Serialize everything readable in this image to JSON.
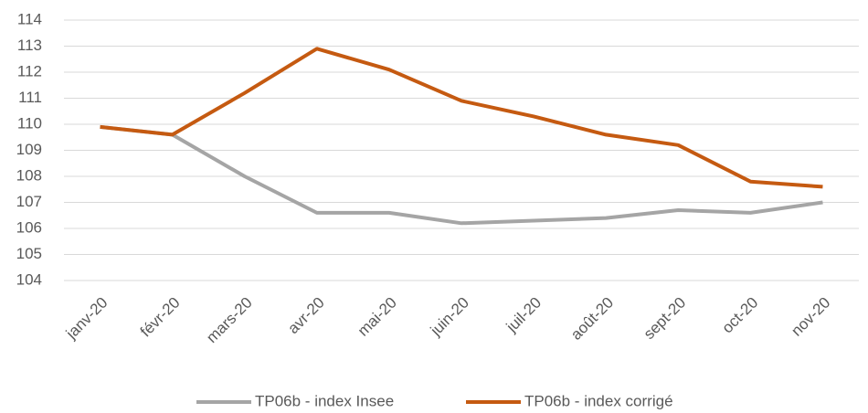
{
  "chart_data": {
    "type": "line",
    "categories": [
      "janv-20",
      "févr-20",
      "mars-20",
      "avr-20",
      "mai-20",
      "juin-20",
      "juil-20",
      "août-20",
      "sept-20",
      "oct-20",
      "nov-20"
    ],
    "series": [
      {
        "name": "TP06b - index Insee",
        "color": "#a5a5a5",
        "values": [
          109.9,
          109.6,
          108.0,
          106.6,
          106.6,
          106.2,
          106.3,
          106.4,
          106.7,
          106.6,
          107.0
        ]
      },
      {
        "name": "TP06b - index corrigé",
        "color": "#c55a11",
        "values": [
          109.9,
          109.6,
          111.2,
          112.9,
          112.1,
          110.9,
          110.3,
          109.6,
          109.2,
          107.8,
          107.6
        ]
      }
    ],
    "ylim": [
      104,
      114
    ],
    "yticks": [
      104,
      105,
      106,
      107,
      108,
      109,
      110,
      111,
      112,
      113,
      114
    ],
    "grid": true,
    "legend": "bottom"
  }
}
